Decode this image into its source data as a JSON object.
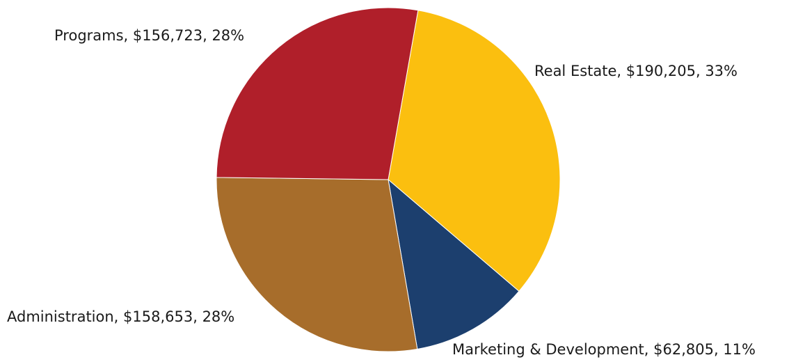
{
  "chart_data": {
    "type": "pie",
    "values": [
      190205,
      62805,
      158653,
      156723
    ],
    "value_labels": [
      "Real Estate, $190,205, 33%",
      "Marketing & Development, $62,805, 11%",
      "Administration, $158,653, 28%",
      "Programs, $156,723, 28%"
    ],
    "colors": [
      "#fbbf0f",
      "#1c3f6e",
      "#a76d2b",
      "#b01f2a"
    ]
  }
}
